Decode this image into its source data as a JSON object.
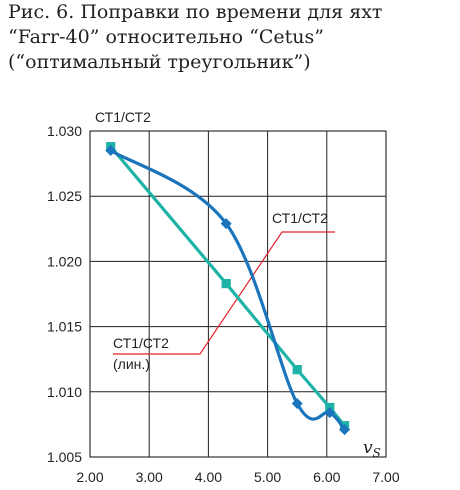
{
  "title_lines": [
    "Рис. 6. Поправки по времени для яхт",
    "“Farr-40” относительно “Cetus”",
    "(“оптимальный треугольник”)"
  ],
  "colors": {
    "curve": "#1b75bc",
    "line": "#1eb3a6",
    "leader": "#e2242d",
    "grid": "#231f20"
  },
  "chart_data": {
    "type": "line",
    "ylabel": "СТ1/СТ2",
    "xlabel": "v",
    "xlabel_sub": "S",
    "xlim": [
      2.0,
      7.0
    ],
    "ylim": [
      1.005,
      1.03
    ],
    "x_ticks": [
      "2.00",
      "3.00",
      "4.00",
      "5.00",
      "6.00",
      "7.00"
    ],
    "y_ticks": [
      "1.005",
      "1.010",
      "1.015",
      "1.020",
      "1.025",
      "1.030"
    ],
    "grid": true,
    "series": [
      {
        "name": "СТ1/СТ2",
        "marker": "diamond",
        "points": [
          [
            2.35,
            1.0285
          ],
          [
            4.3,
            1.0229
          ],
          [
            5.5,
            1.0091
          ],
          [
            6.05,
            1.0084
          ],
          [
            6.3,
            1.0071
          ]
        ]
      },
      {
        "name": "СТ1/СТ2 (лин.)",
        "marker": "square",
        "points": [
          [
            2.35,
            1.0288
          ],
          [
            4.3,
            1.0183
          ],
          [
            5.5,
            1.0117
          ],
          [
            6.05,
            1.0088
          ],
          [
            6.3,
            1.0074
          ]
        ]
      }
    ],
    "annotations": [
      {
        "lines": [
          "СТ1/СТ2"
        ],
        "series": 0
      },
      {
        "lines": [
          "СТ1/СТ2",
          "(лин.)"
        ],
        "series": 1
      }
    ]
  }
}
